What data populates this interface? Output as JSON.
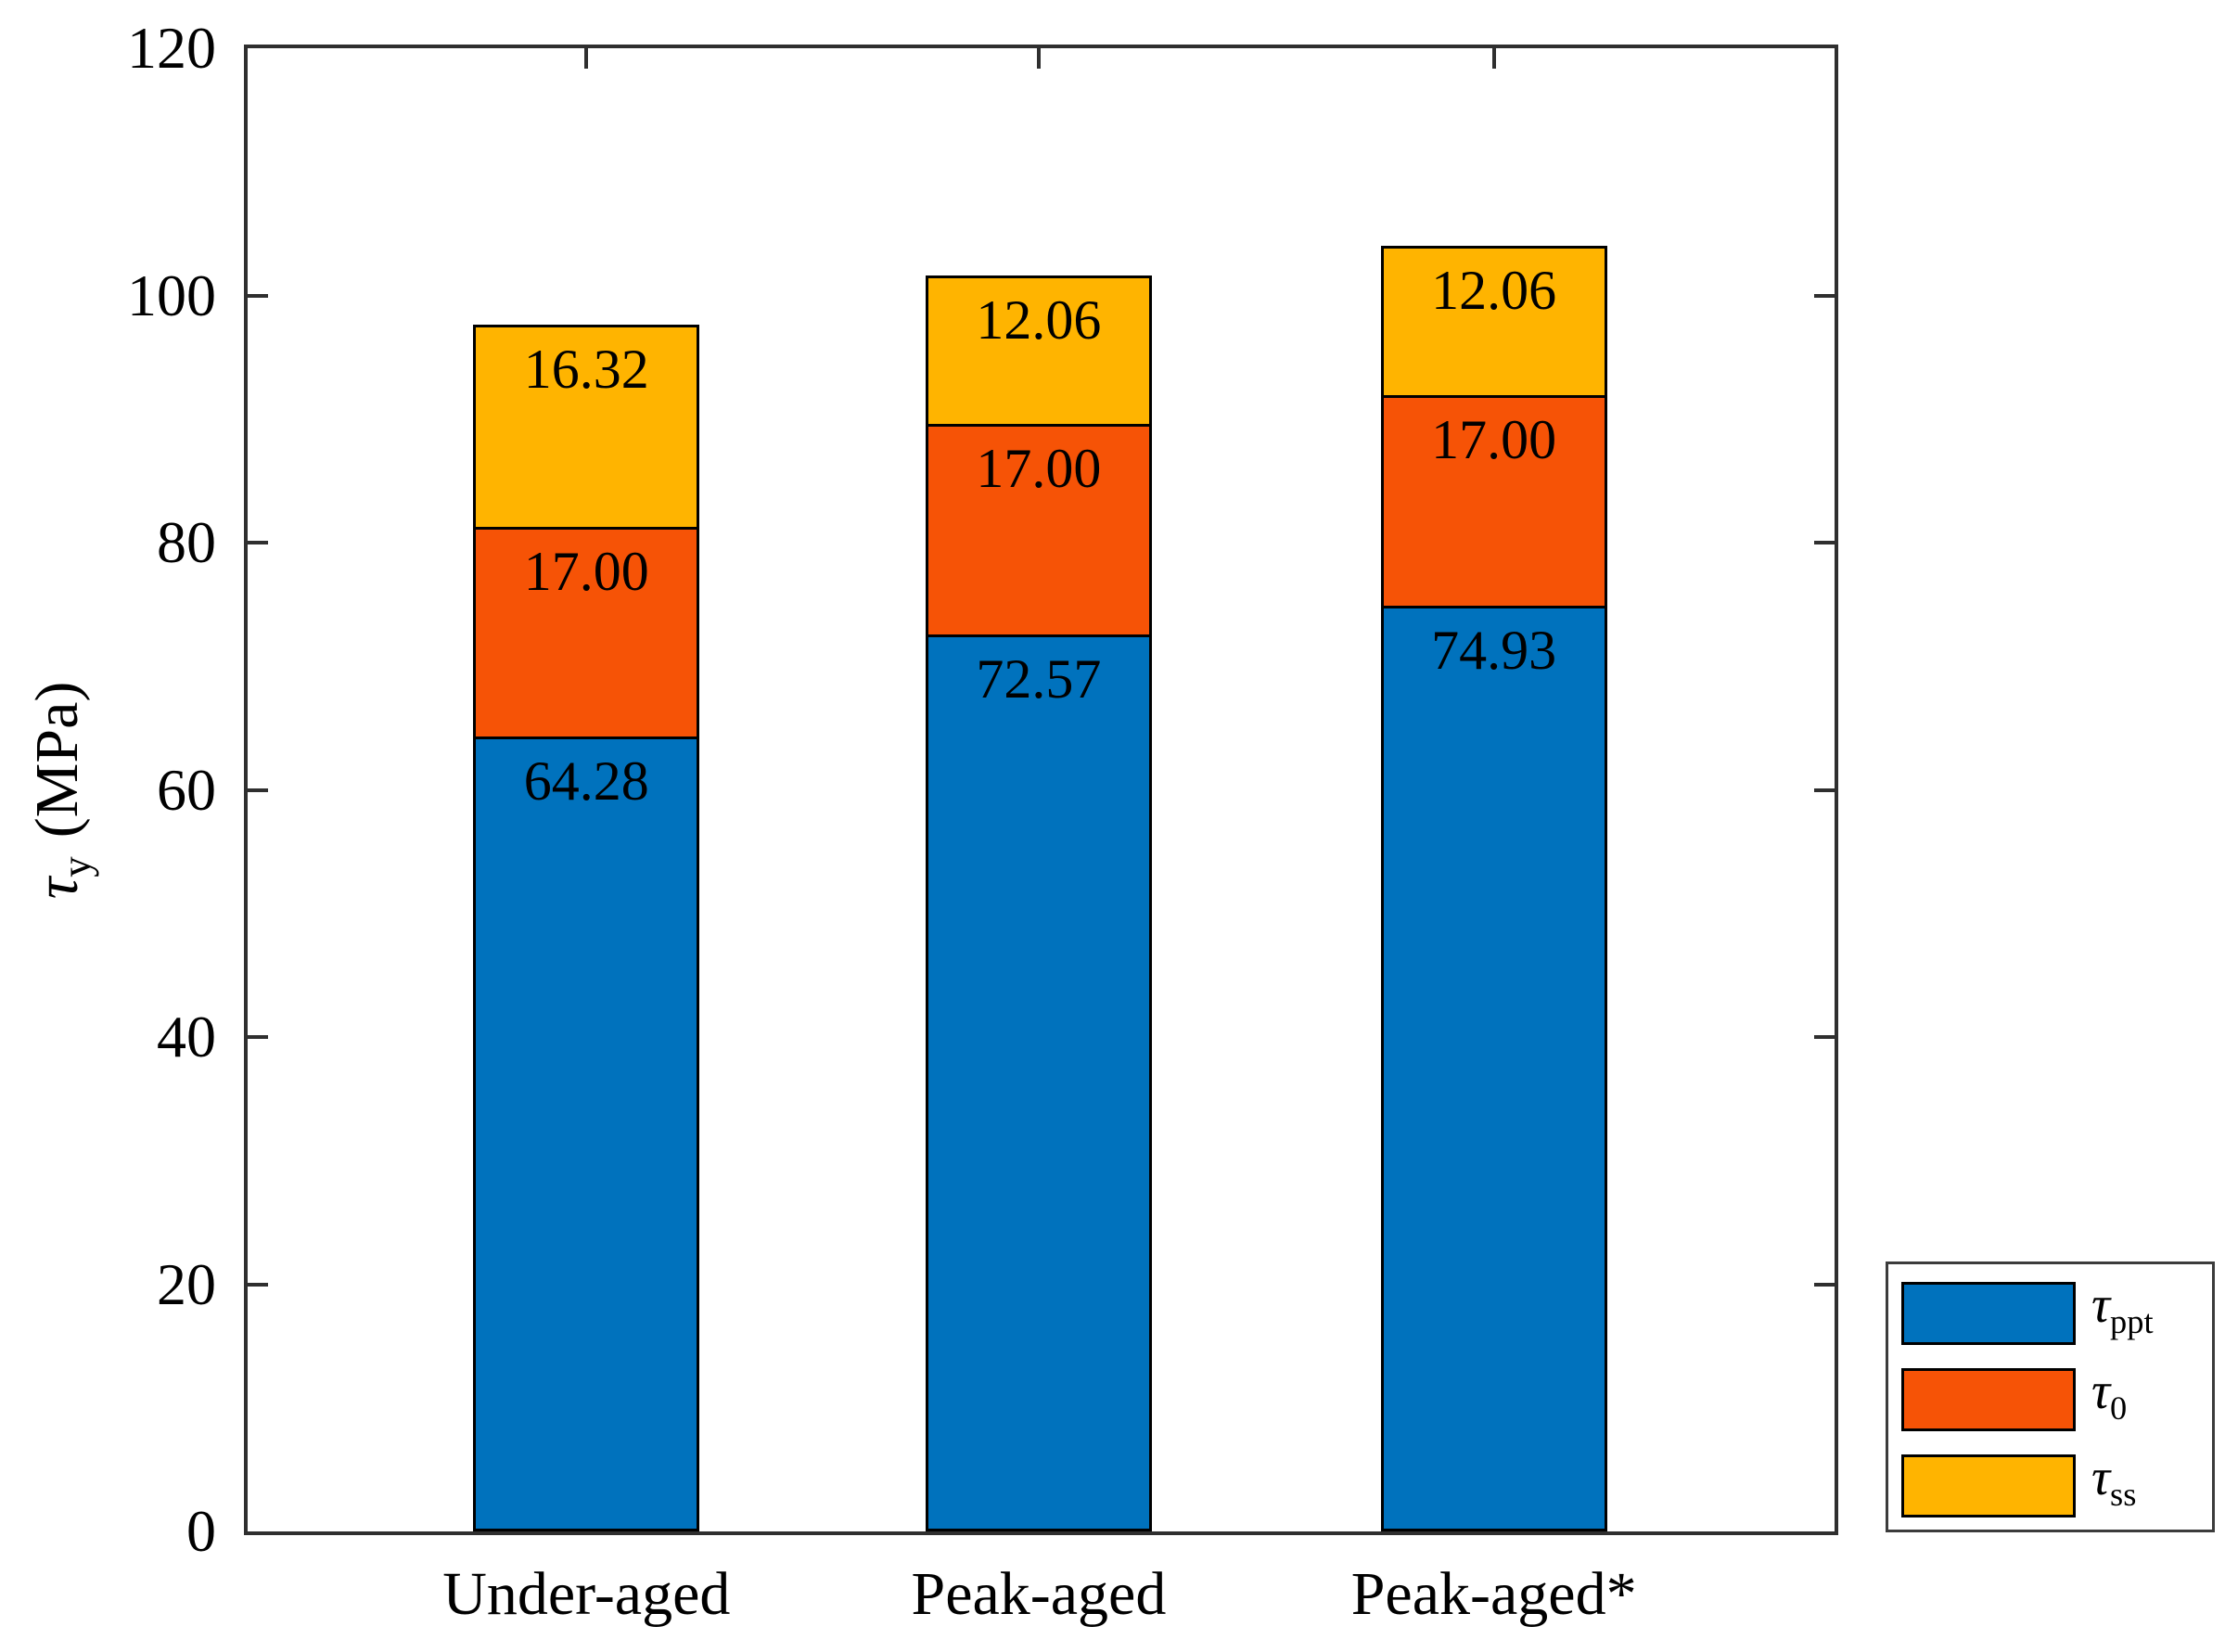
{
  "figure_background": "#ffffff",
  "axis_color": "#2f2f2f",
  "bar_edge_color": "#000000",
  "chart_data": {
    "type": "bar",
    "stacked": true,
    "title": "",
    "xlabel": "",
    "ylabel": {
      "symbol": "τ",
      "symbol_sub": "y",
      "unit": "(MPa)"
    },
    "ylim": [
      0,
      120
    ],
    "yticks": [
      0,
      20,
      40,
      60,
      80,
      100,
      120
    ],
    "grid": false,
    "legend_position": "outside-bottom-right",
    "categories": [
      "Under-aged",
      "Peak-aged",
      "Peak-aged*"
    ],
    "series": [
      {
        "slug": "tau-ppt",
        "symbol": "τ",
        "sub": "ppt",
        "color": "#0072BD",
        "values": [
          64.28,
          72.57,
          74.93
        ]
      },
      {
        "slug": "tau-0",
        "symbol": "τ",
        "sub": "0",
        "color": "#F65306",
        "values": [
          17.0,
          17.0,
          17.0
        ]
      },
      {
        "slug": "tau-ss",
        "symbol": "τ",
        "sub": "ss",
        "color": "#FFB400",
        "values": [
          16.32,
          12.06,
          12.06
        ]
      }
    ],
    "value_label_format": "2dp",
    "totals": [
      97.6,
      101.63,
      103.99
    ]
  }
}
